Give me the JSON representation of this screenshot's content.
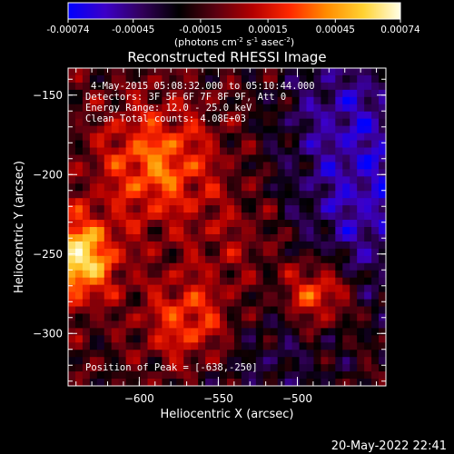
{
  "chart_data": {
    "type": "heatmap",
    "title": "Reconstructed RHESSI Image",
    "xlabel": "Heliocentric X (arcsec)",
    "ylabel": "Heliocentric Y (arcsec)",
    "xlim": [
      -645,
      -444
    ],
    "ylim": [
      -333,
      -133
    ],
    "x_ticks": [
      -600,
      -550,
      -500
    ],
    "y_ticks": [
      -150,
      -200,
      -250,
      -300
    ],
    "colorbar": {
      "ticks": [
        "-0.00074",
        "-0.00045",
        "-0.00015",
        "0.00015",
        "0.00045",
        "0.00074"
      ],
      "label_main": "(photons cm",
      "label_sup1": "-2",
      "label_mid": " s",
      "label_sup2": "-1",
      "label_end": " asec",
      "label_sup3": "-2",
      "label_close": ")",
      "range": [
        -0.00074,
        0.00074
      ],
      "colormap": [
        "#0000ff",
        "#3c00c8",
        "#32005a",
        "#000000",
        "#5a0010",
        "#b40000",
        "#ff2800",
        "#ff8c00",
        "#ffd232",
        "#ffffe6"
      ]
    },
    "annotations": {
      "time_range": "4-May-2015 05:08:32.000 to 05:10:44.000",
      "detectors": "Detectors: 3F 5F 6F 7F 8F 9F, Att 0",
      "energy": "Energy Range: 12.0 - 25.0 keV",
      "clean": "Clean     Total counts: 4.08E+03",
      "peak": "Position of Peak = [-638,-250]"
    },
    "peak": [
      -638,
      -250
    ]
  },
  "timestamp": "20-May-2022 22:41"
}
